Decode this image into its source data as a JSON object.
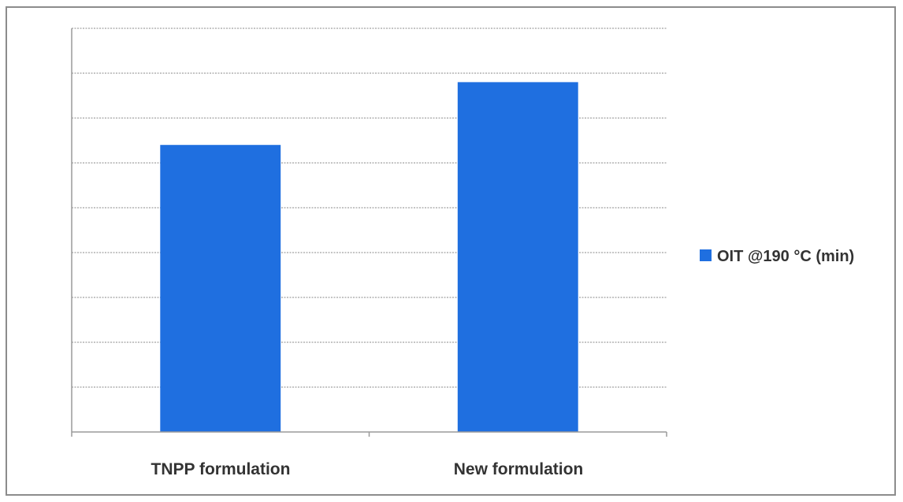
{
  "chart_data": {
    "type": "bar",
    "categories": [
      "TNPP formulation",
      "New formulation"
    ],
    "series": [
      {
        "name": "OIT @190 °C (min)",
        "values": [
          6.4,
          7.8
        ],
        "color": "#1f6fe0"
      }
    ],
    "title": "",
    "xlabel": "",
    "ylabel": "",
    "ylim": [
      0,
      9
    ],
    "gridlines": true,
    "y_tick_labels_shown": false,
    "legend": {
      "position": "right",
      "entries": [
        "OIT @190 °C (min)"
      ]
    }
  }
}
